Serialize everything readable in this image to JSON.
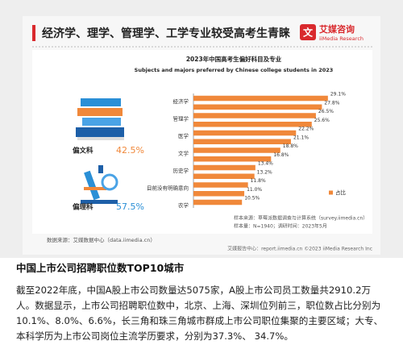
{
  "header": {
    "title": "经济学、理学、管理学、工学专业较受高考生青睐",
    "brand": "艾媒咨询",
    "brand_en": "iiMedia Research"
  },
  "chart_data": {
    "type": "hbar",
    "title": "2023年中国高考生偏好科目及专业",
    "subtitle": "Subjects and majors preferred by Chinese college students in 2023",
    "categories": [
      "经济学",
      null,
      "管理学",
      null,
      "医学",
      null,
      "文学",
      null,
      "历史学",
      null,
      "目前没有明确意向",
      null,
      "农学"
    ],
    "series": [
      {
        "name": "占比",
        "color": "#f0883a",
        "values": [
          29.1,
          27.8,
          26.5,
          25.6,
          22.2,
          21.1,
          18.8,
          16.8,
          13.4,
          13.2,
          11.8,
          11.0,
          10.5
        ],
        "value_labels": [
          "29.1%",
          "27.8%",
          "26.5%",
          "25.6%",
          "22.2%",
          "21.1%",
          "18.8%",
          "16.8%",
          "13.4%",
          "13.2%",
          "11.8%",
          "11.0%",
          "10.5%"
        ]
      }
    ],
    "xlim": [
      0,
      30
    ],
    "legend": "lower-right"
  },
  "share": {
    "categories": [
      "偏文科",
      "偏理科"
    ],
    "values": [
      42.5,
      57.5
    ],
    "value_labels": [
      "42.5%",
      "57.5%"
    ],
    "colors": [
      "#f0883a",
      "#2a8fd6"
    ]
  },
  "notes": {
    "source": "数据来源：艾媒数据中心（data.iimedia.cn）",
    "sample_source": "样本来源：草莓派数据调查与计算系统（survey.iimedia.cn）",
    "sample_size": "样本量：N=1940；调研时间：2023年5月",
    "footer": "艾媒报告中心：report.iimedia.cn ©2023  iiMedia Research Inc"
  },
  "section": {
    "heading": "中国上市公司招聘职位数TOP10城市",
    "text": "截至2022年底，中国A股上市公司数量达5075家，A股上市公司员工数量共2910.2万人。数据显示，上市公司招聘职位数中，北京、上海、深圳位列前三，职位数占比分别为10.1%、8.0%、6.6%，长三角和珠三角城市群成上市公司职位集聚的主要区域；大专、本科学历为上市公司岗位主流学历要求，分别为37.3%、 34.7%。"
  }
}
